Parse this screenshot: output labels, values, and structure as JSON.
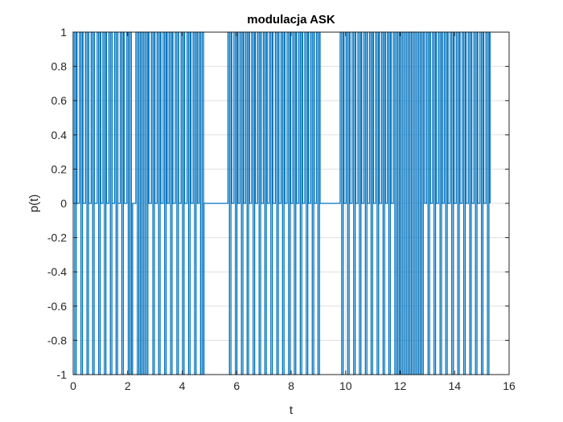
{
  "chart_data": {
    "type": "line",
    "title": "modulacja ASK",
    "xlabel": "t",
    "ylabel": "p(t)",
    "xlim": [
      0,
      16
    ],
    "ylim": [
      -1,
      1
    ],
    "grid": true,
    "xticks": [
      0,
      2,
      4,
      6,
      8,
      10,
      12,
      14,
      16
    ],
    "xtick_labels": [
      "0",
      "2",
      "4",
      "6",
      "8",
      "10",
      "12",
      "14",
      "16"
    ],
    "yticks": [
      -1,
      -0.8,
      -0.6,
      -0.4,
      -0.2,
      0,
      0.2,
      0.4,
      0.6,
      0.8,
      1
    ],
    "ytick_labels": [
      "-1",
      "-0.8",
      "-0.6",
      "-0.4",
      "-0.2",
      "0",
      "0.2",
      "0.4",
      "0.6",
      "0.8",
      "1"
    ],
    "series": [
      {
        "color": "#0072bd",
        "description_values": "square-wave carrier amplitude-keyed between ±1 and 0",
        "on_segments": [
          [
            0.0,
            0.14
          ],
          [
            0.23,
            0.36
          ],
          [
            0.45,
            0.57
          ],
          [
            0.66,
            0.78
          ],
          [
            0.88,
            1.01
          ],
          [
            1.09,
            1.22
          ],
          [
            1.31,
            1.43
          ],
          [
            1.52,
            1.64
          ],
          [
            1.73,
            1.87
          ],
          [
            1.97,
            2.18
          ],
          [
            2.3,
            2.78
          ],
          [
            2.87,
            3.0
          ],
          [
            3.08,
            3.22
          ],
          [
            3.3,
            3.45
          ],
          [
            3.52,
            3.66
          ],
          [
            3.75,
            3.87
          ],
          [
            3.96,
            4.09
          ],
          [
            4.18,
            4.32
          ],
          [
            4.4,
            4.56
          ],
          [
            4.62,
            4.8
          ],
          [
            5.68,
            5.82
          ],
          [
            5.9,
            6.05
          ],
          [
            6.12,
            6.26
          ],
          [
            6.33,
            6.47
          ],
          [
            6.55,
            6.69
          ],
          [
            6.77,
            6.9
          ],
          [
            6.98,
            7.12
          ],
          [
            7.2,
            7.33
          ],
          [
            7.42,
            7.55
          ],
          [
            7.63,
            7.77
          ],
          [
            7.85,
            7.98
          ],
          [
            8.06,
            8.2
          ],
          [
            8.28,
            8.42
          ],
          [
            8.5,
            8.64
          ],
          [
            8.72,
            8.85
          ],
          [
            8.93,
            9.06
          ],
          [
            9.8,
            9.94
          ],
          [
            10.02,
            10.16
          ],
          [
            10.24,
            10.37
          ],
          [
            10.45,
            10.59
          ],
          [
            10.67,
            10.8
          ],
          [
            10.88,
            11.02
          ],
          [
            11.1,
            11.24
          ],
          [
            11.32,
            11.46
          ],
          [
            11.53,
            11.67
          ],
          [
            11.75,
            12.9
          ],
          [
            12.97,
            13.11
          ],
          [
            13.19,
            13.33
          ],
          [
            13.41,
            13.55
          ],
          [
            13.62,
            13.76
          ],
          [
            13.84,
            13.98
          ],
          [
            14.06,
            14.2
          ],
          [
            14.28,
            14.42
          ],
          [
            14.5,
            14.63
          ],
          [
            14.71,
            14.85
          ],
          [
            14.93,
            15.07
          ],
          [
            15.15,
            15.3
          ]
        ],
        "carrier_half_period": 0.055
      }
    ]
  }
}
